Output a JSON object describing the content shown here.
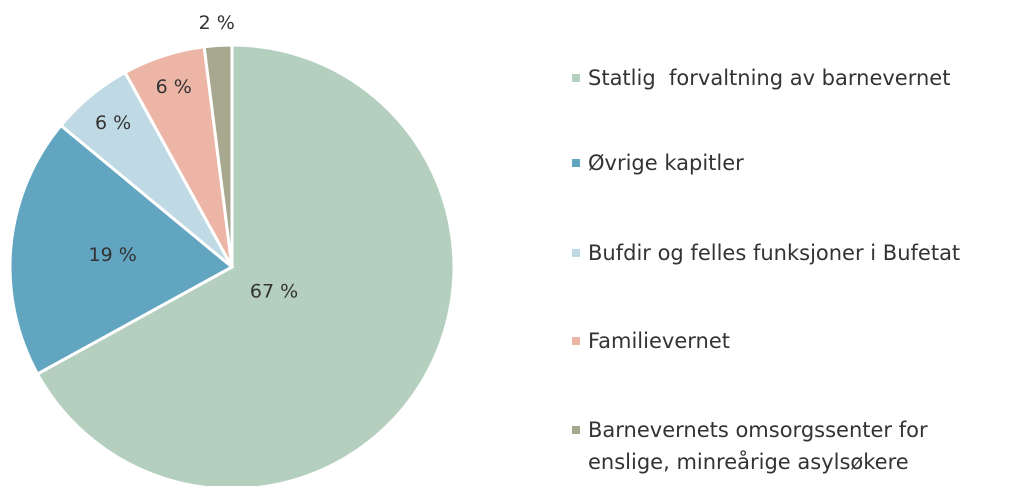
{
  "chart_data": {
    "type": "pie",
    "categories": [
      "Statlig  forvaltning av barnevernet",
      "Øvrige kapitler",
      "Bufdir og felles funksjoner i Bufetat",
      "Familievernet",
      "Barnevernets omsorgssenter for enslige, minreårige asylsøkere"
    ],
    "values": [
      67,
      19,
      6,
      6,
      2
    ],
    "value_labels": [
      "67 %",
      "19 %",
      "6 %",
      "6 %",
      "2 %"
    ],
    "colors": [
      "#b5cfbf",
      "#62a5c0",
      "#c0dae5",
      "#ecb5a6",
      "#a8a78f"
    ]
  }
}
